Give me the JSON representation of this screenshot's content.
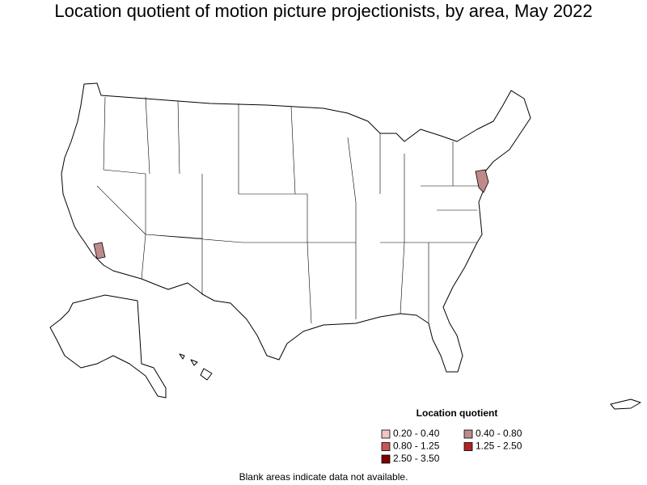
{
  "title": "Location quotient of motion picture projectionists, by area, May 2022",
  "legend": {
    "title": "Location quotient",
    "items": [
      {
        "label": "0.20 - 0.40",
        "color": "#f2c4c4"
      },
      {
        "label": "0.40 - 0.80",
        "color": "#bf8a8a"
      },
      {
        "label": "0.80 - 1.25",
        "color": "#c85454"
      },
      {
        "label": "1.25 - 2.50",
        "color": "#b02424"
      },
      {
        "label": "2.50 - 3.50",
        "color": "#7e0000"
      }
    ]
  },
  "note": "Blank areas indicate data not available."
}
